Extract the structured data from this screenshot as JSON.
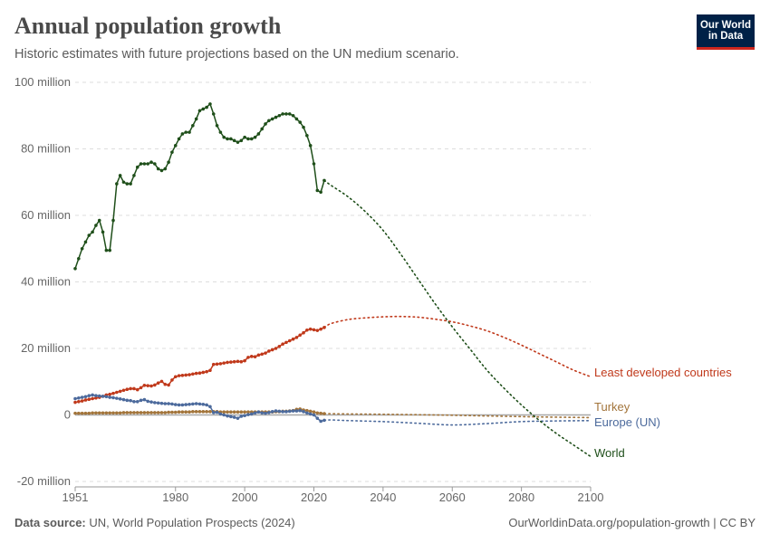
{
  "header": {
    "title": "Annual population growth",
    "subtitle": "Historic estimates with future projections based on the UN medium scenario.",
    "logo_line1": "Our World",
    "logo_line2": "in Data"
  },
  "footer": {
    "source_label": "Data source:",
    "source_text": " UN, World Population Prospects (2024)",
    "link": "OurWorldinData.org/population-growth | CC BY"
  },
  "chart_data": {
    "type": "line",
    "title": "Annual population growth",
    "xlim": [
      1951,
      2100
    ],
    "ylim": [
      -20,
      100
    ],
    "x_ticks": [
      "1951",
      "1980",
      "2000",
      "2020",
      "2040",
      "2060",
      "2080",
      "2100"
    ],
    "x_tick_values": [
      1951,
      1980,
      2000,
      2020,
      2040,
      2060,
      2080,
      2100
    ],
    "y_ticks": [
      "-20 million",
      "0",
      "20 million",
      "40 million",
      "60 million",
      "80 million",
      "100 million"
    ],
    "y_tick_values": [
      -20,
      0,
      20,
      40,
      60,
      80,
      100
    ],
    "grid": "horizontal dashed",
    "legend": "right, end-of-line labels",
    "units": "million",
    "series": [
      {
        "name": "Least developed countries",
        "color": "#c0391b",
        "historical": {
          "years": [
            1951,
            2023
          ],
          "values": [
            3.8,
            4.0,
            4.2,
            4.5,
            4.7,
            4.9,
            5.1,
            5.3,
            5.6,
            6.0,
            6.2,
            6.5,
            6.8,
            7.1,
            7.4,
            7.7,
            7.9,
            7.9,
            7.6,
            8.2,
            8.9,
            8.8,
            8.7,
            9.0,
            9.6,
            10.1,
            9.2,
            9.0,
            10.5,
            11.5,
            11.8,
            11.9,
            12.0,
            12.1,
            12.3,
            12.5,
            12.6,
            12.8,
            13.0,
            13.4,
            15.2,
            15.3,
            15.4,
            15.6,
            15.8,
            15.9,
            16.0,
            16.1,
            16.0,
            16.3,
            17.3,
            17.6,
            17.5,
            18.0,
            18.3,
            18.6,
            19.2,
            19.6,
            20.0,
            20.6,
            21.3,
            21.8,
            22.3,
            22.8,
            23.3,
            24.0,
            24.7,
            25.5,
            25.8,
            25.6,
            25.4,
            25.8,
            26.3
          ]
        },
        "projection": {
          "years": [
            2023,
            2025,
            2030,
            2035,
            2040,
            2045,
            2050,
            2055,
            2060,
            2065,
            2070,
            2075,
            2080,
            2085,
            2090,
            2095,
            2100
          ],
          "values": [
            26.3,
            27.5,
            28.7,
            29.2,
            29.5,
            29.6,
            29.4,
            28.8,
            28.0,
            26.8,
            25.3,
            23.3,
            21.0,
            18.5,
            16.0,
            13.5,
            11.5
          ]
        }
      },
      {
        "name": "Turkey",
        "color": "#a2743a",
        "historical": {
          "years": [
            1951,
            2023
          ],
          "values": [
            0.5,
            0.5,
            0.5,
            0.5,
            0.5,
            0.6,
            0.6,
            0.6,
            0.6,
            0.6,
            0.6,
            0.6,
            0.6,
            0.6,
            0.7,
            0.7,
            0.7,
            0.7,
            0.7,
            0.7,
            0.7,
            0.7,
            0.7,
            0.7,
            0.7,
            0.7,
            0.7,
            0.8,
            0.8,
            0.8,
            0.9,
            0.9,
            0.9,
            0.9,
            1.0,
            1.0,
            1.0,
            1.0,
            1.0,
            1.0,
            1.0,
            1.0,
            0.9,
            0.9,
            0.9,
            0.9,
            0.9,
            0.9,
            0.9,
            0.9,
            0.9,
            0.9,
            0.9,
            0.9,
            0.9,
            0.9,
            0.9,
            0.9,
            1.0,
            1.0,
            1.1,
            1.1,
            1.2,
            1.3,
            1.7,
            1.8,
            1.5,
            1.3,
            1.1,
            0.9,
            0.6,
            0.5,
            0.4
          ]
        },
        "projection": {
          "years": [
            2023,
            2030,
            2040,
            2055,
            2070,
            2085,
            2100
          ],
          "values": [
            0.4,
            0.3,
            0.2,
            0.0,
            -0.3,
            -0.6,
            -0.8
          ]
        }
      },
      {
        "name": "Europe (UN)",
        "color": "#4c6a9c",
        "historical": {
          "years": [
            1951,
            2023
          ],
          "values": [
            4.9,
            5.1,
            5.3,
            5.5,
            5.8,
            6.0,
            5.8,
            5.7,
            5.6,
            5.5,
            5.3,
            5.2,
            5.0,
            4.8,
            4.6,
            4.4,
            4.3,
            4.0,
            4.0,
            4.4,
            4.6,
            4.1,
            3.9,
            3.7,
            3.6,
            3.5,
            3.4,
            3.4,
            3.3,
            3.1,
            3.0,
            3.0,
            3.1,
            3.2,
            3.3,
            3.4,
            3.3,
            3.2,
            3.0,
            2.5,
            0.7,
            0.8,
            0.3,
            0.0,
            -0.3,
            -0.5,
            -0.7,
            -1.0,
            -0.4,
            -0.2,
            0.1,
            0.3,
            0.6,
            0.9,
            0.6,
            0.5,
            0.7,
            1.0,
            1.2,
            1.1,
            1.0,
            1.0,
            1.1,
            1.2,
            1.2,
            1.3,
            1.0,
            0.6,
            0.3,
            0.0,
            -1.0,
            -1.9,
            -1.6
          ]
        },
        "projection": {
          "years": [
            2023,
            2025,
            2030,
            2040,
            2050,
            2060,
            2070,
            2080,
            2090,
            2100
          ],
          "values": [
            -1.6,
            -1.5,
            -1.7,
            -2.0,
            -2.5,
            -3.0,
            -2.6,
            -2.0,
            -1.8,
            -1.7
          ]
        }
      },
      {
        "name": "World",
        "color": "#1f4f1a",
        "historical": {
          "years": [
            1951,
            2023
          ],
          "values": [
            44,
            47,
            50,
            52,
            54,
            55,
            57,
            58.5,
            55,
            49.5,
            49.5,
            58.5,
            69.5,
            72,
            70,
            69.5,
            69.5,
            72,
            74.5,
            75.5,
            75.5,
            75.5,
            76,
            75.5,
            74,
            73.5,
            74,
            76,
            79,
            81,
            83,
            84.5,
            85,
            85,
            87,
            89,
            91.5,
            92,
            92.5,
            93.5,
            90.5,
            87,
            85,
            83.5,
            83,
            83,
            82.5,
            82,
            82.5,
            83.5,
            83,
            83,
            83.5,
            84.5,
            86,
            87.5,
            88.5,
            89,
            89.5,
            90,
            90.5,
            90.5,
            90.5,
            90,
            89,
            88,
            86.5,
            84,
            81,
            75.5,
            67.5,
            67,
            70.5
          ]
        },
        "projection": {
          "years": [
            2023,
            2025,
            2030,
            2035,
            2040,
            2045,
            2050,
            2055,
            2060,
            2065,
            2070,
            2075,
            2080,
            2085,
            2090,
            2095,
            2100
          ],
          "values": [
            70.5,
            69,
            65.5,
            61,
            55.5,
            48.5,
            41,
            33.5,
            26.5,
            20,
            13.5,
            8,
            3,
            -1.5,
            -5.5,
            -9,
            -12.5
          ]
        }
      }
    ]
  }
}
